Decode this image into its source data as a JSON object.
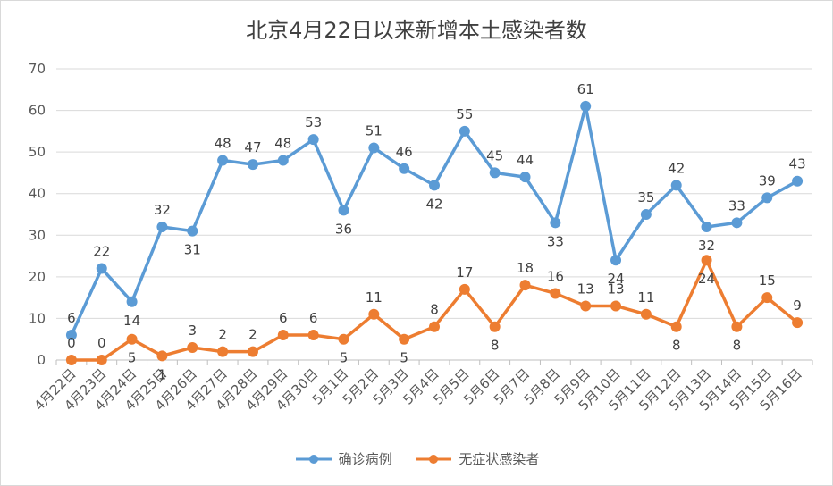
{
  "chart_data": {
    "type": "line",
    "title": "北京4月22日以来新增本土感染者数",
    "categories": [
      "4月22日",
      "4月23日",
      "4月24日",
      "4月25日",
      "4月26日",
      "4月27日",
      "4月28日",
      "4月29日",
      "4月30日",
      "5月1日",
      "5月2日",
      "5月3日",
      "5月4日",
      "5月5日",
      "5月6日",
      "5月7日",
      "5月8日",
      "5月9日",
      "5月10日",
      "5月11日",
      "5月12日",
      "5月13日",
      "5月14日",
      "5月15日",
      "5月16日"
    ],
    "ylim": [
      0,
      70
    ],
    "yticks": [
      0,
      10,
      20,
      30,
      40,
      50,
      60,
      70
    ],
    "grid": true,
    "legend": "bottom",
    "series": [
      {
        "name": "确诊病例",
        "color": "#5b9bd5",
        "values": [
          6,
          22,
          14,
          32,
          31,
          48,
          47,
          48,
          53,
          36,
          51,
          46,
          42,
          55,
          45,
          44,
          33,
          61,
          24,
          35,
          42,
          32,
          33,
          39,
          43
        ]
      },
      {
        "name": "无症状感染者",
        "color": "#ed7d31",
        "values": [
          0,
          0,
          5,
          1,
          3,
          2,
          2,
          6,
          6,
          5,
          11,
          5,
          8,
          17,
          8,
          18,
          16,
          13,
          13,
          11,
          8,
          24,
          8,
          15,
          9
        ]
      }
    ]
  }
}
